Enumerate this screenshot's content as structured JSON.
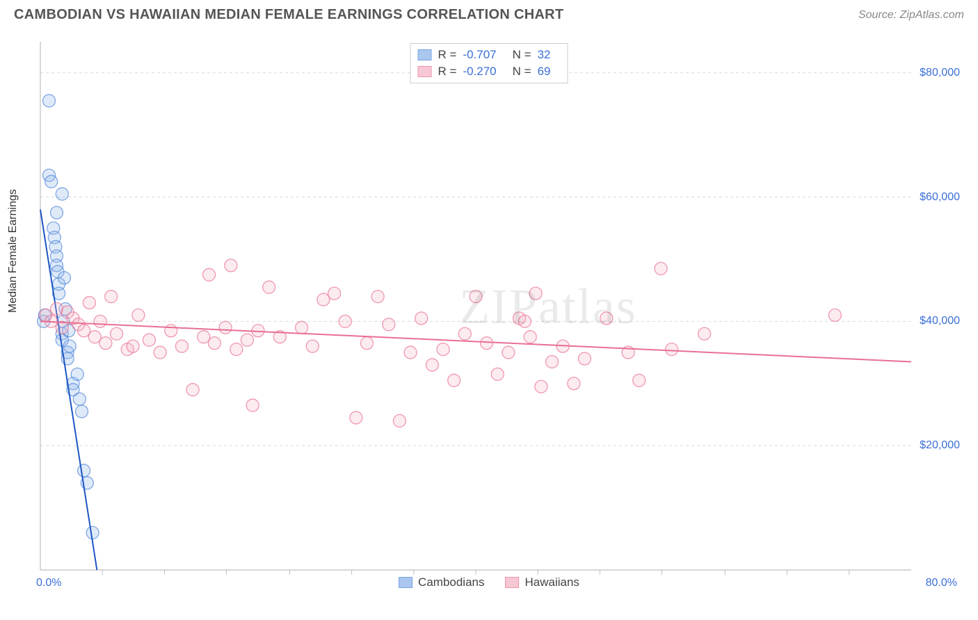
{
  "header": {
    "title": "CAMBODIAN VS HAWAIIAN MEDIAN FEMALE EARNINGS CORRELATION CHART",
    "source_label": "Source: ZipAtlas.com"
  },
  "chart": {
    "type": "scatter",
    "ylabel": "Median Female Earnings",
    "xlim": [
      0,
      80
    ],
    "ylim": [
      0,
      85000
    ],
    "x_tick_min_label": "0.0%",
    "x_tick_max_label": "80.0%",
    "x_minor_ticks": [
      5.7,
      11.4,
      17.1,
      22.9,
      28.6,
      34.3,
      40.0,
      45.7,
      51.4,
      57.1,
      62.9,
      68.6,
      74.3
    ],
    "y_ticks": [
      20000,
      40000,
      60000,
      80000
    ],
    "y_tick_labels": [
      "$20,000",
      "$40,000",
      "$60,000",
      "$80,000"
    ],
    "grid_color": "#d9d9d9",
    "axis_color": "#bfbfbf",
    "background_color": "#ffffff",
    "tick_label_color": "#3b6fd6",
    "axis_label_color": "#333333",
    "watermark_text": "ZIPatlas",
    "watermark_color": "#000000",
    "watermark_opacity": 0.08,
    "marker_radius": 9,
    "marker_fill_opacity": 0.28,
    "marker_stroke_opacity": 0.7,
    "trend_line_width": 2,
    "series": [
      {
        "name": "Cambodians",
        "legend_label": "Cambodians",
        "color_fill": "#8db5ea",
        "color_stroke": "#4f86d8",
        "trend_color": "#1d56c4",
        "R_label": "R =",
        "R_value": "-0.707",
        "N_label": "N =",
        "N_value": "32",
        "trend": {
          "x1": 0,
          "y1": 58000,
          "x2": 5.2,
          "y2": 0
        },
        "points": [
          [
            0.3,
            40000
          ],
          [
            0.4,
            41000
          ],
          [
            0.8,
            75500
          ],
          [
            0.8,
            63500
          ],
          [
            1.0,
            62500
          ],
          [
            1.2,
            55000
          ],
          [
            1.3,
            53500
          ],
          [
            1.4,
            52000
          ],
          [
            1.5,
            57500
          ],
          [
            1.5,
            50500
          ],
          [
            1.5,
            49000
          ],
          [
            1.6,
            48000
          ],
          [
            1.7,
            46000
          ],
          [
            1.7,
            44500
          ],
          [
            2.0,
            60500
          ],
          [
            2.0,
            38000
          ],
          [
            2.0,
            37000
          ],
          [
            2.1,
            40000
          ],
          [
            2.2,
            47000
          ],
          [
            2.3,
            42000
          ],
          [
            2.5,
            35000
          ],
          [
            2.5,
            34000
          ],
          [
            2.6,
            38500
          ],
          [
            2.7,
            36000
          ],
          [
            3.0,
            30000
          ],
          [
            3.0,
            29000
          ],
          [
            3.4,
            31500
          ],
          [
            3.6,
            27500
          ],
          [
            3.8,
            25500
          ],
          [
            4.0,
            16000
          ],
          [
            4.3,
            14000
          ],
          [
            4.8,
            6000
          ]
        ]
      },
      {
        "name": "Hawaiians",
        "legend_label": "Hawaiians",
        "color_fill": "#f4b6c5",
        "color_stroke": "#e86f92",
        "trend_color": "#e86f92",
        "R_label": "R =",
        "R_value": "-0.270",
        "N_label": "N =",
        "N_value": "69",
        "trend": {
          "x1": 0,
          "y1": 40000,
          "x2": 80,
          "y2": 33500
        },
        "points": [
          [
            0.5,
            41000
          ],
          [
            1.0,
            40000
          ],
          [
            1.5,
            42000
          ],
          [
            2.0,
            39000
          ],
          [
            2.5,
            41500
          ],
          [
            3.0,
            40500
          ],
          [
            3.5,
            39500
          ],
          [
            4.0,
            38500
          ],
          [
            4.5,
            43000
          ],
          [
            5.0,
            37500
          ],
          [
            5.5,
            40000
          ],
          [
            6.0,
            36500
          ],
          [
            6.5,
            44000
          ],
          [
            7.0,
            38000
          ],
          [
            8.0,
            35500
          ],
          [
            8.5,
            36000
          ],
          [
            9.0,
            41000
          ],
          [
            10.0,
            37000
          ],
          [
            11.0,
            35000
          ],
          [
            12.0,
            38500
          ],
          [
            13.0,
            36000
          ],
          [
            14.0,
            29000
          ],
          [
            15.0,
            37500
          ],
          [
            15.5,
            47500
          ],
          [
            16.0,
            36500
          ],
          [
            17.0,
            39000
          ],
          [
            17.5,
            49000
          ],
          [
            18.0,
            35500
          ],
          [
            19.0,
            37000
          ],
          [
            19.5,
            26500
          ],
          [
            20.0,
            38500
          ],
          [
            21.0,
            45500
          ],
          [
            22.0,
            37500
          ],
          [
            24.0,
            39000
          ],
          [
            25.0,
            36000
          ],
          [
            26.0,
            43500
          ],
          [
            27.0,
            44500
          ],
          [
            28.0,
            40000
          ],
          [
            29.0,
            24500
          ],
          [
            30.0,
            36500
          ],
          [
            31.0,
            44000
          ],
          [
            32.0,
            39500
          ],
          [
            33.0,
            24000
          ],
          [
            34.0,
            35000
          ],
          [
            35.0,
            40500
          ],
          [
            36.0,
            33000
          ],
          [
            37.0,
            35500
          ],
          [
            38.0,
            30500
          ],
          [
            39.0,
            38000
          ],
          [
            40.0,
            44000
          ],
          [
            41.0,
            36500
          ],
          [
            42.0,
            31500
          ],
          [
            43.0,
            35000
          ],
          [
            44.0,
            40500
          ],
          [
            44.5,
            40000
          ],
          [
            45.0,
            37500
          ],
          [
            45.5,
            44500
          ],
          [
            46.0,
            29500
          ],
          [
            47.0,
            33500
          ],
          [
            48.0,
            36000
          ],
          [
            49.0,
            30000
          ],
          [
            50.0,
            34000
          ],
          [
            52.0,
            40500
          ],
          [
            54.0,
            35000
          ],
          [
            55.0,
            30500
          ],
          [
            57.0,
            48500
          ],
          [
            58.0,
            35500
          ],
          [
            61.0,
            38000
          ],
          [
            73.0,
            41000
          ]
        ]
      }
    ]
  },
  "legend_bottom": {
    "items": [
      {
        "label": "Cambodians",
        "fill": "#8db5ea",
        "stroke": "#4f86d8"
      },
      {
        "label": "Hawaiians",
        "fill": "#f4b6c5",
        "stroke": "#e86f92"
      }
    ]
  }
}
